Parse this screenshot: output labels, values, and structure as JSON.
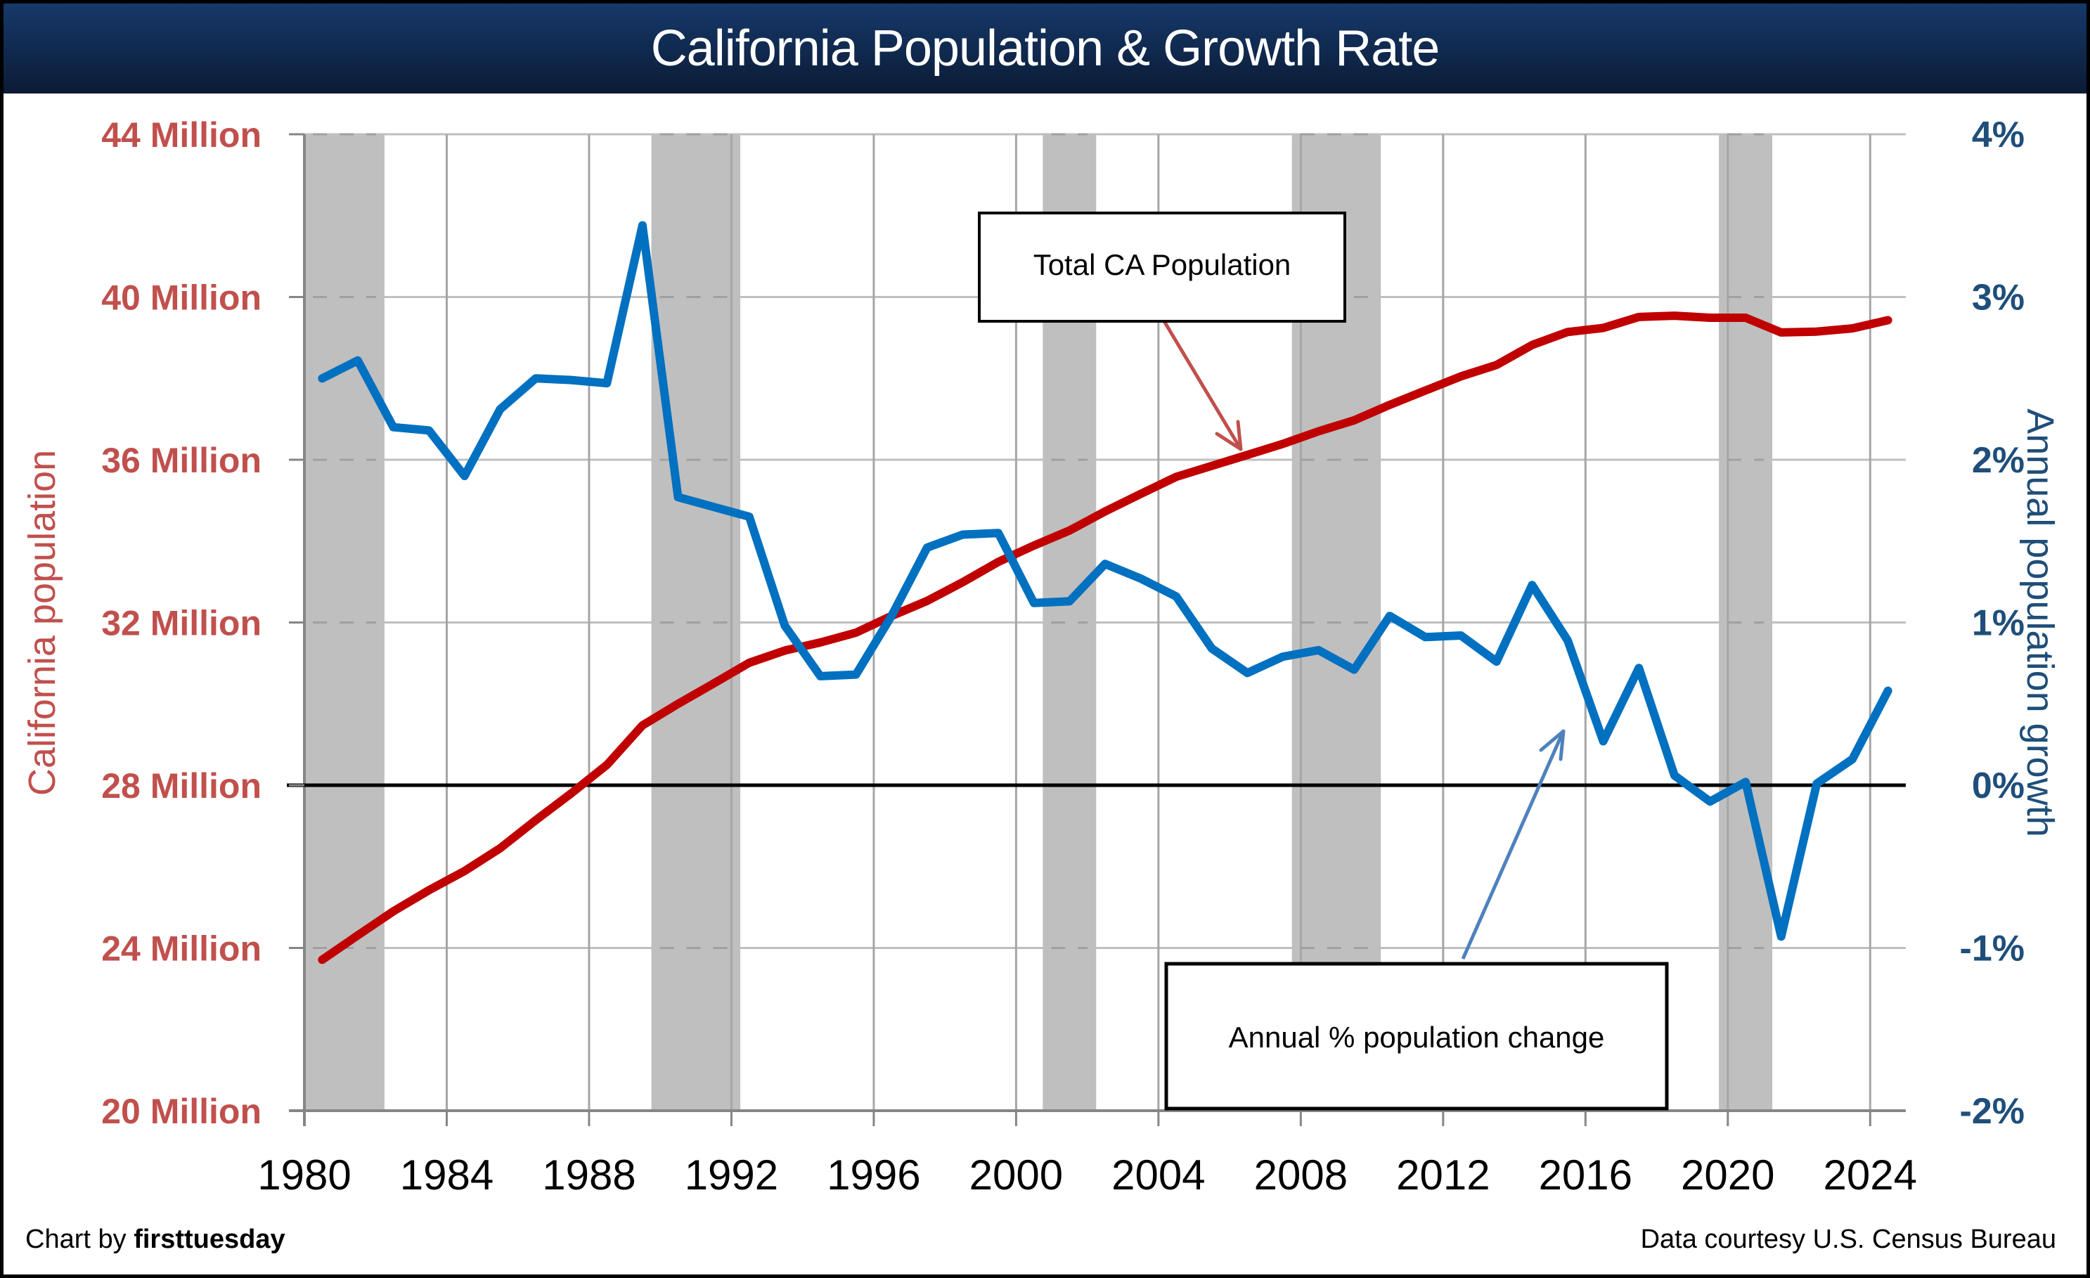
{
  "title": "California Population & Growth Rate",
  "footer": {
    "credit_prefix": "Chart by",
    "credit_brand": "firsttuesday",
    "source": "Data courtesy U.S. Census Bureau"
  },
  "colors": {
    "population_line": "#C00000",
    "growth_line": "#0070C0",
    "left_axis_text": "#C0504D",
    "right_axis_text": "#1F4E79",
    "recession_shade": "#BFBFBF",
    "header_top": "#16396A",
    "header_bottom": "#0B1B35",
    "population_arrow": "#C0504D",
    "growth_arrow": "#4F81BD"
  },
  "chart_data": {
    "type": "line",
    "title": "California Population & Growth Rate",
    "xlabel": "",
    "ylabel_left": "California population",
    "ylabel_right": "Annual population growth",
    "xlim": [
      1980,
      2025
    ],
    "ylim_left": [
      20,
      44
    ],
    "ylim_right": [
      -2,
      4
    ],
    "x_ticks": [
      1980,
      1984,
      1988,
      1992,
      1996,
      2000,
      2004,
      2008,
      2012,
      2016,
      2020,
      2024
    ],
    "x_tick_labels": [
      "1980",
      "1984",
      "1988",
      "1992",
      "1996",
      "2000",
      "2004",
      "2008",
      "2012",
      "2016",
      "2020",
      "2024"
    ],
    "y_left_ticks": [
      44,
      40,
      36,
      32,
      28,
      24,
      20
    ],
    "y_left_tick_labels": [
      "44 Million",
      "40 Million",
      "36 Million",
      "32 Million",
      "28 Million",
      "24 Million",
      "20 Million"
    ],
    "y_right_ticks": [
      4,
      3,
      2,
      1,
      0,
      -1,
      -2
    ],
    "y_right_tick_labels": [
      "4%",
      "3%",
      "2%",
      "1%",
      "0%",
      "-1%",
      "-2%"
    ],
    "grid": true,
    "zero_line_at_percent": 0,
    "x": [
      1980,
      1981,
      1982,
      1983,
      1984,
      1985,
      1986,
      1987,
      1988,
      1989,
      1990,
      1991,
      1992,
      1993,
      1994,
      1995,
      1996,
      1997,
      1998,
      1999,
      2000,
      2001,
      2002,
      2003,
      2004,
      2005,
      2006,
      2007,
      2008,
      2009,
      2010,
      2011,
      2012,
      2013,
      2014,
      2015,
      2016,
      2017,
      2018,
      2019,
      2020,
      2021,
      2022,
      2023,
      2024
    ],
    "series": [
      {
        "name": "Total CA Population",
        "axis": "left",
        "unit": "Million",
        "values": [
          23.71,
          24.31,
          24.9,
          25.42,
          25.89,
          26.45,
          27.14,
          27.8,
          28.5,
          29.47,
          30.0,
          30.5,
          31.01,
          31.31,
          31.51,
          31.75,
          32.16,
          32.53,
          32.99,
          33.49,
          33.89,
          34.26,
          34.73,
          35.16,
          35.58,
          35.85,
          36.12,
          36.39,
          36.7,
          36.97,
          37.35,
          37.7,
          38.05,
          38.33,
          38.82,
          39.14,
          39.24,
          39.51,
          39.54,
          39.49,
          39.49,
          39.13,
          39.15,
          39.23,
          39.43
        ]
      },
      {
        "name": "Annual % population change",
        "axis": "right",
        "unit": "%",
        "values": [
          2.5,
          2.61,
          2.2,
          2.18,
          1.9,
          2.31,
          2.5,
          2.49,
          2.47,
          3.44,
          1.77,
          1.71,
          1.65,
          0.98,
          0.67,
          0.68,
          1.04,
          1.46,
          1.54,
          1.55,
          1.12,
          1.13,
          1.36,
          1.27,
          1.16,
          0.84,
          0.69,
          0.79,
          0.83,
          0.71,
          1.04,
          0.91,
          0.92,
          0.76,
          1.23,
          0.89,
          0.27,
          0.72,
          0.06,
          -0.1,
          0.02,
          -0.93,
          0.01,
          0.16,
          0.58
        ]
      }
    ],
    "recession_bands": [
      [
        1980.0,
        1982.25
      ],
      [
        1989.75,
        1992.25
      ],
      [
        2000.75,
        2002.25
      ],
      [
        2007.75,
        2010.25
      ],
      [
        2019.75,
        2021.25
      ]
    ],
    "annotations": [
      {
        "text": "Total CA Population",
        "points_to_series": "Total CA Population"
      },
      {
        "text": "Annual % population change",
        "points_to_series": "Annual % population change"
      }
    ]
  }
}
